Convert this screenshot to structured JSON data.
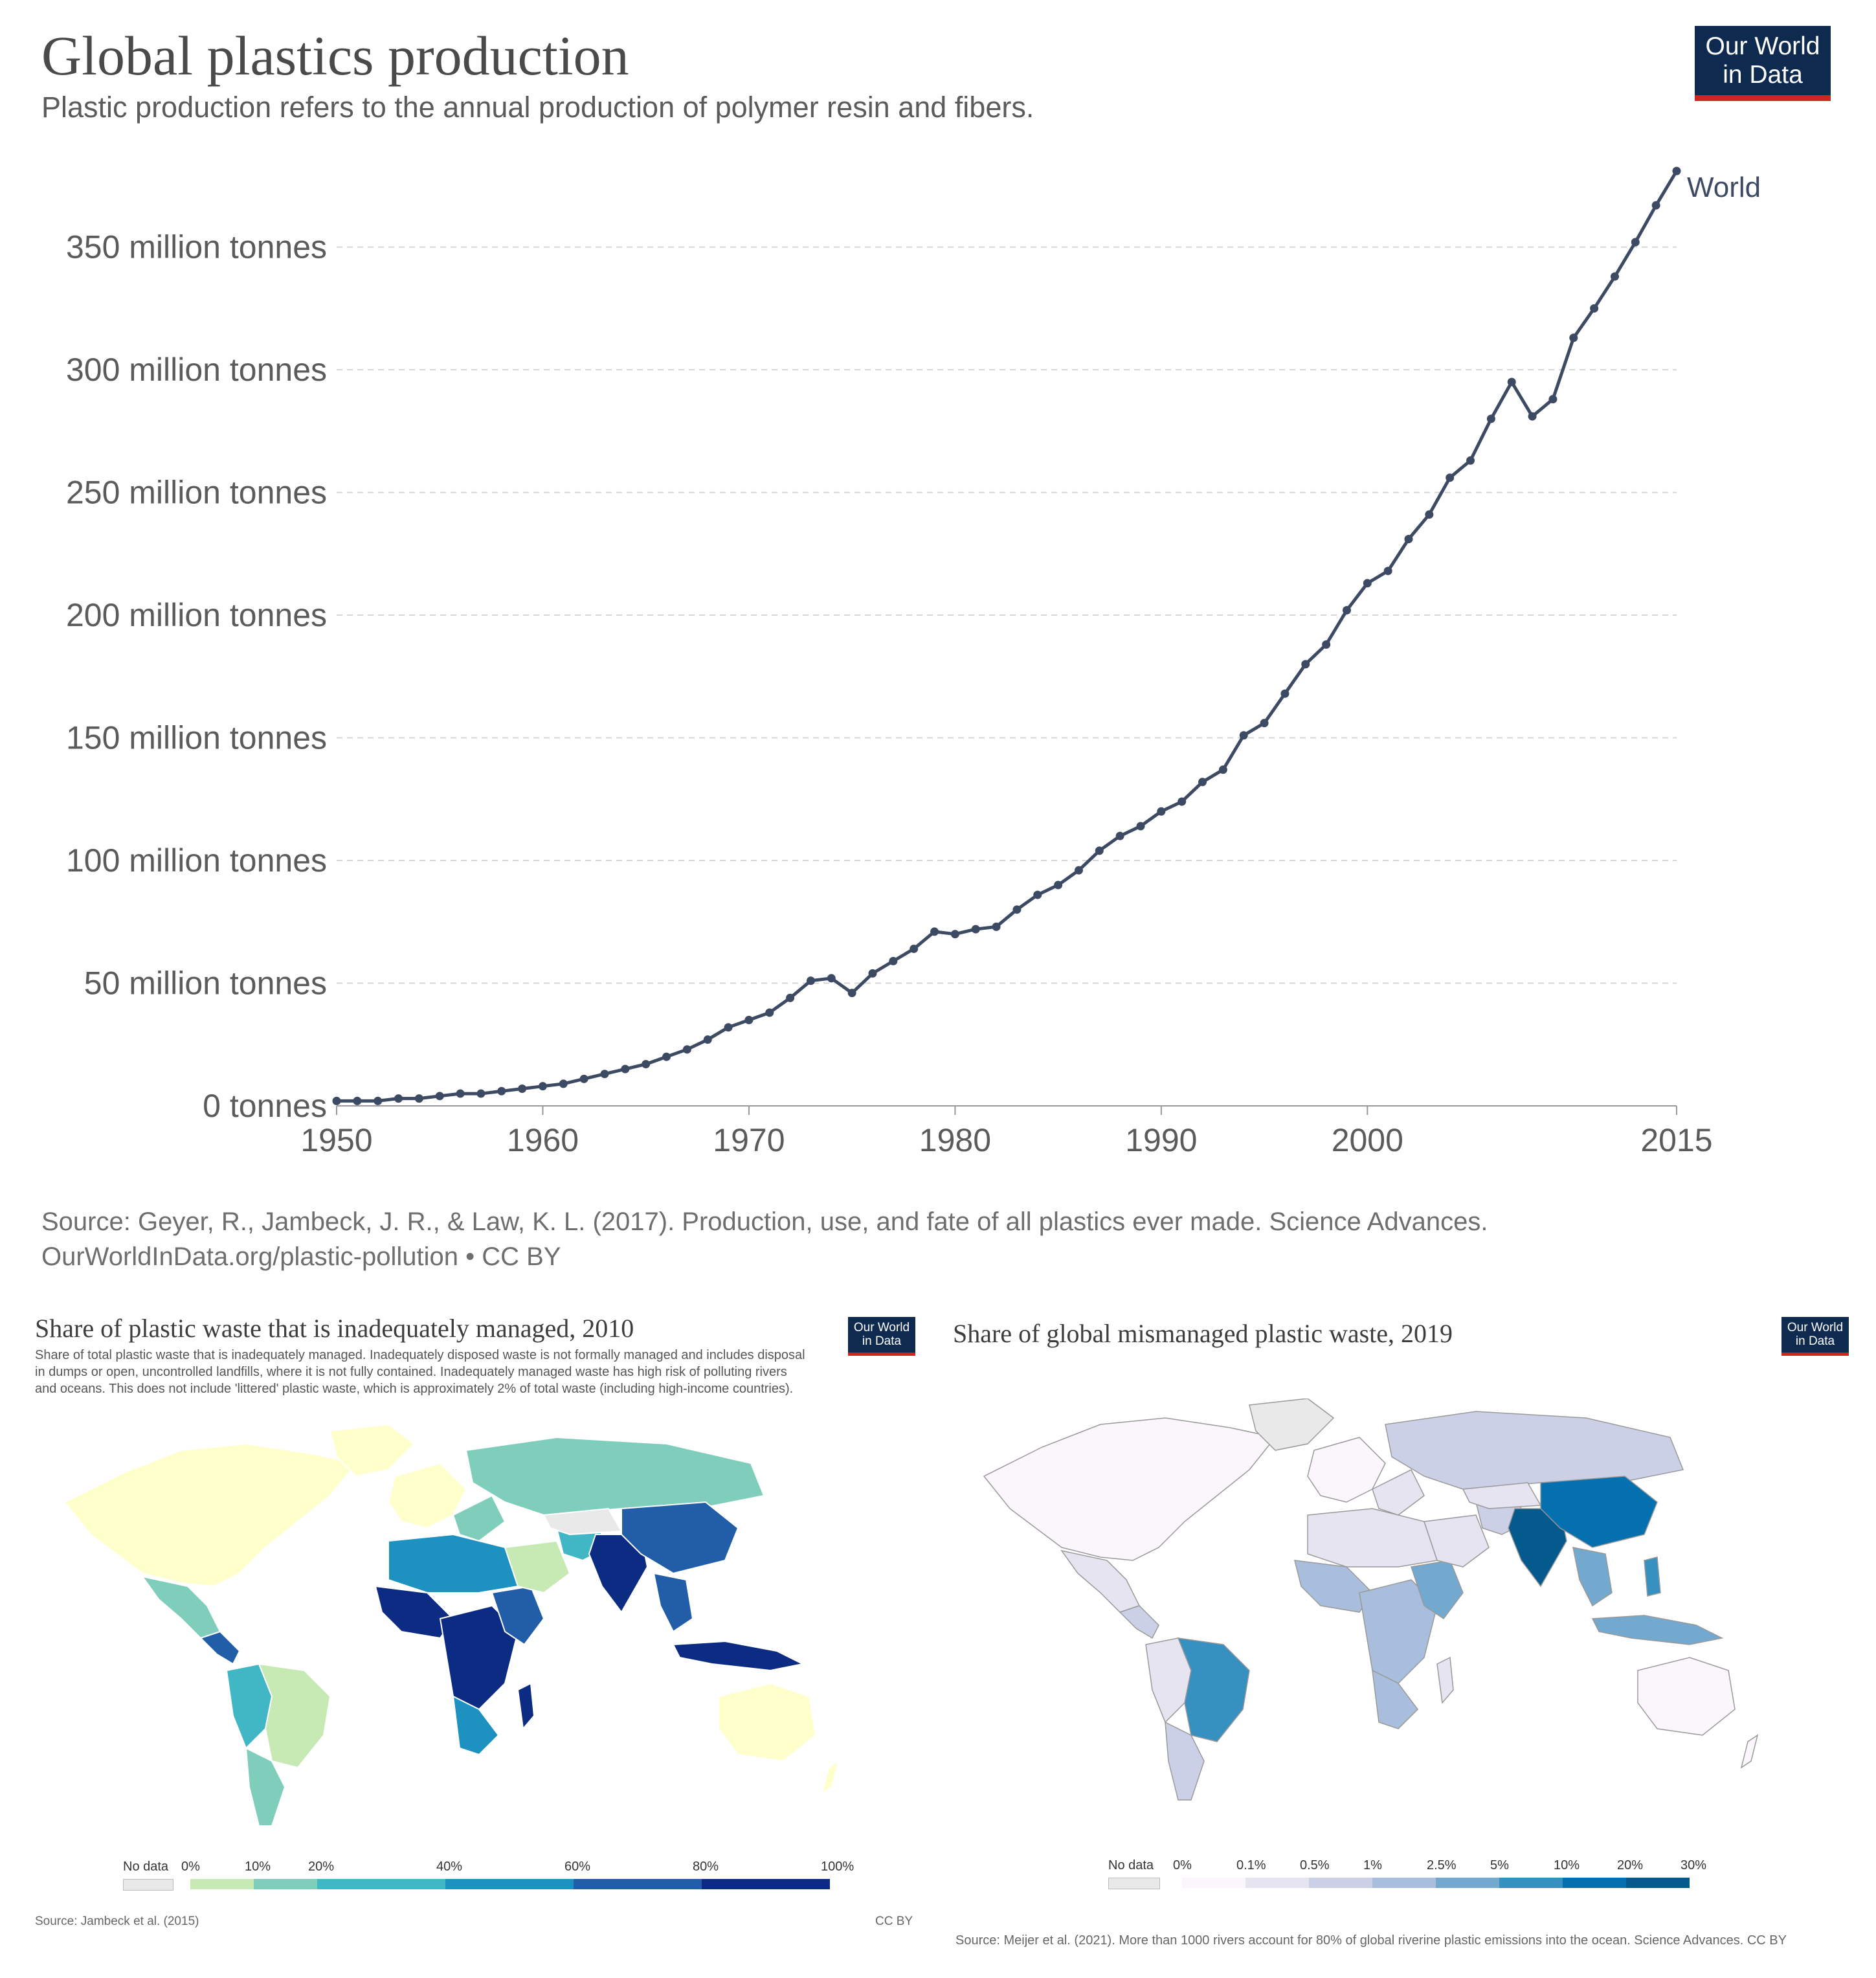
{
  "header": {
    "title": "Global plastics production",
    "subtitle": "Plastic production refers to the annual production of polymer resin and fibers.",
    "logo_line1": "Our World",
    "logo_line2": "in Data"
  },
  "chart_data": {
    "type": "line",
    "title": "Global plastics production",
    "subtitle": "Plastic production refers to the annual production of polymer resin and fibers.",
    "ylabel": "",
    "xlabel": "",
    "xlim": [
      1950,
      2015
    ],
    "ylim": [
      0,
      390
    ],
    "y_ticks": [
      {
        "value": 0,
        "label": "0 tonnes"
      },
      {
        "value": 50,
        "label": "50 million tonnes"
      },
      {
        "value": 100,
        "label": "100 million tonnes"
      },
      {
        "value": 150,
        "label": "150 million tonnes"
      },
      {
        "value": 200,
        "label": "200 million tonnes"
      },
      {
        "value": 250,
        "label": "250 million tonnes"
      },
      {
        "value": 300,
        "label": "300 million tonnes"
      },
      {
        "value": 350,
        "label": "350 million tonnes"
      }
    ],
    "x_ticks": [
      {
        "value": 1950,
        "label": "1950"
      },
      {
        "value": 1960,
        "label": "1960"
      },
      {
        "value": 1970,
        "label": "1970"
      },
      {
        "value": 1980,
        "label": "1980"
      },
      {
        "value": 1990,
        "label": "1990"
      },
      {
        "value": 2000,
        "label": "2000"
      },
      {
        "value": 2015,
        "label": "2015"
      }
    ],
    "grid": "horizontal dashed",
    "series": [
      {
        "name": "World",
        "color": "#3d4a63",
        "x": [
          1950,
          1951,
          1952,
          1953,
          1954,
          1955,
          1956,
          1957,
          1958,
          1959,
          1960,
          1961,
          1962,
          1963,
          1964,
          1965,
          1966,
          1967,
          1968,
          1969,
          1970,
          1971,
          1972,
          1973,
          1974,
          1975,
          1976,
          1977,
          1978,
          1979,
          1980,
          1981,
          1982,
          1983,
          1984,
          1985,
          1986,
          1987,
          1988,
          1989,
          1990,
          1991,
          1992,
          1993,
          1994,
          1995,
          1996,
          1997,
          1998,
          1999,
          2000,
          2001,
          2002,
          2003,
          2004,
          2005,
          2006,
          2007,
          2008,
          2009,
          2010,
          2011,
          2012,
          2013,
          2014,
          2015
        ],
        "y": [
          2,
          2,
          2,
          3,
          3,
          4,
          5,
          5,
          6,
          7,
          8,
          9,
          11,
          13,
          15,
          17,
          20,
          23,
          27,
          32,
          35,
          38,
          44,
          51,
          52,
          46,
          54,
          59,
          64,
          71,
          70,
          72,
          73,
          80,
          86,
          90,
          96,
          104,
          110,
          114,
          120,
          124,
          132,
          137,
          151,
          156,
          168,
          180,
          188,
          202,
          213,
          218,
          231,
          241,
          256,
          263,
          280,
          295,
          281,
          288,
          313,
          325,
          338,
          352,
          367,
          381
        ]
      }
    ],
    "source": "Source: Geyer, R., Jambeck, J. R., & Law, K. L. (2017). Production, use, and fate of all plastics ever made. Science Advances.",
    "url_license": "OurWorldInData.org/plastic-pollution • CC BY"
  },
  "left_panel": {
    "title": "Share of plastic waste that is inadequately managed, 2010",
    "description": "Share of total plastic waste that is inadequately managed. Inadequately disposed waste is not formally managed and includes disposal in dumps or open, uncontrolled landfills, where it is not fully contained. Inadequately managed waste has high risk of polluting rivers and oceans. This does not include 'littered' plastic waste, which is approximately 2% of total waste (including high-income countries).",
    "logo_line1": "Our World",
    "logo_line2": "in Data",
    "legend": {
      "no_data": "No data",
      "no_data_color": "#e9e9e9",
      "labels": [
        "0%",
        "10%",
        "20%",
        "40%",
        "60%",
        "80%",
        "100%"
      ],
      "colors": [
        "#c7e9b4",
        "#7fcdbb",
        "#41b6c4",
        "#1d91c0",
        "#225ea8",
        "#0c2c84"
      ]
    },
    "source": "Source: Jambeck et al. (2015)",
    "license": "CC BY"
  },
  "right_panel": {
    "title": "Share of global mismanaged plastic waste, 2019",
    "logo_line1": "Our World",
    "logo_line2": "in Data",
    "legend": {
      "no_data": "No data",
      "no_data_color": "#e9e9e9",
      "labels": [
        "0%",
        "0.1%",
        "0.5%",
        "1%",
        "2.5%",
        "5%",
        "10%",
        "20%",
        "30%"
      ],
      "colors": [
        "#fbf6fb",
        "#e6e4f1",
        "#ccd0e6",
        "#a9bddc",
        "#74a9cf",
        "#3690c0",
        "#0570b0",
        "#045a8d"
      ]
    },
    "source": "Source: Meijer et al. (2021). More than 1000 rivers account for 80% of global riverine plastic emissions into the ocean. Science Advances.    CC BY"
  }
}
